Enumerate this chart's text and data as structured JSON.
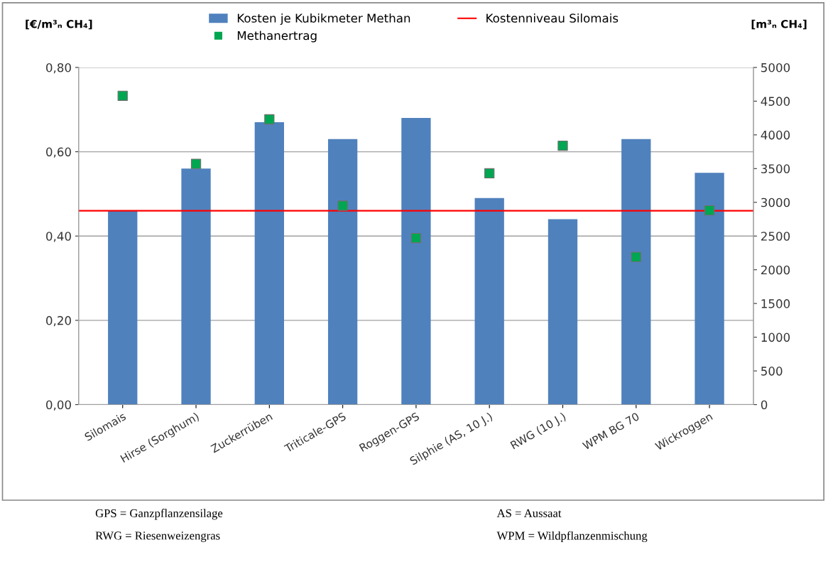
{
  "chart_data": {
    "type": "bar",
    "ylabel": "[€/m³ₙ CH₄]",
    "y2label": "[m³ₙ CH₄]",
    "categories": [
      "Silomais",
      "Hirse (Sorghum)",
      "Zuckerrüben",
      "Triticale-GPS",
      "Roggen-GPS",
      "Silphie (AS, 10 J.)",
      "RWG (10 J.)",
      "WPM BG 70",
      "Wickroggen"
    ],
    "series": [
      {
        "name": "Kosten je Kubikmeter Methan",
        "color": "#4f81bd",
        "values": [
          0.46,
          0.56,
          0.67,
          0.63,
          0.68,
          0.49,
          0.44,
          0.63,
          0.55
        ]
      },
      {
        "name": "Methanertrag",
        "type": "scatter",
        "axis": "y2",
        "marker": "square",
        "color": "#00a651",
        "values": [
          4580,
          3570,
          4230,
          2950,
          2470,
          3430,
          3840,
          2190,
          2880
        ]
      }
    ],
    "ref_lines": [
      {
        "axis": "y",
        "value": 0.46,
        "label": "Kostenniveau Silomais",
        "color": "#ff0000"
      }
    ],
    "ylim": [
      0,
      0.8
    ],
    "yticks": [
      {
        "value": 0,
        "label": "0,00"
      },
      {
        "value": 0.2,
        "label": "0,20"
      },
      {
        "value": 0.4,
        "label": "0,40"
      },
      {
        "value": 0.6,
        "label": "0,60"
      },
      {
        "value": 0.8,
        "label": "0,80"
      }
    ],
    "y2lim": [
      0,
      5000
    ],
    "y2ticks": [
      0,
      500,
      1000,
      1500,
      2000,
      2500,
      3000,
      3500,
      4000,
      4500,
      5000
    ],
    "grid": "y",
    "legend": "top",
    "annotations": [
      "GPS = Ganzpflanzensilage",
      "AS = Aussaat",
      "RWG = Riesenweizengras",
      "WPM = Wildpflanzenmischung"
    ]
  }
}
